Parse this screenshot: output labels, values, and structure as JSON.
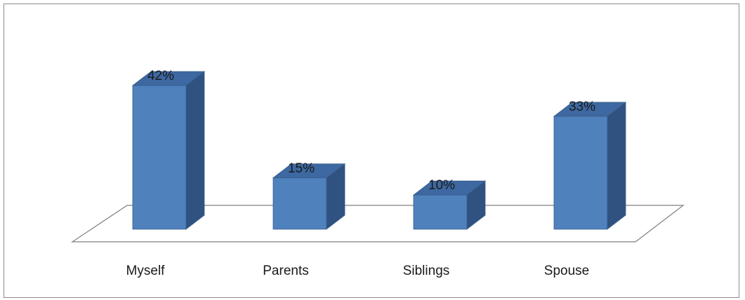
{
  "chart_data": {
    "type": "bar",
    "categories": [
      "Myself",
      "Parents",
      "Siblings",
      "Spouse"
    ],
    "values": [
      42,
      15,
      10,
      33
    ],
    "value_labels": [
      "42%",
      "15%",
      "10%",
      "33%"
    ],
    "value_unit": "%",
    "ylim": [
      0,
      42
    ],
    "grid": false,
    "legend": "none",
    "style": "3d-column",
    "colors": {
      "bar_front": "#4f81bd",
      "bar_top": "#3d68a1",
      "bar_side": "#2f5281",
      "bar_outline": "#385d8a",
      "floor_stroke": "#7f7f7f",
      "frame_stroke": "#8c8c8c"
    }
  }
}
